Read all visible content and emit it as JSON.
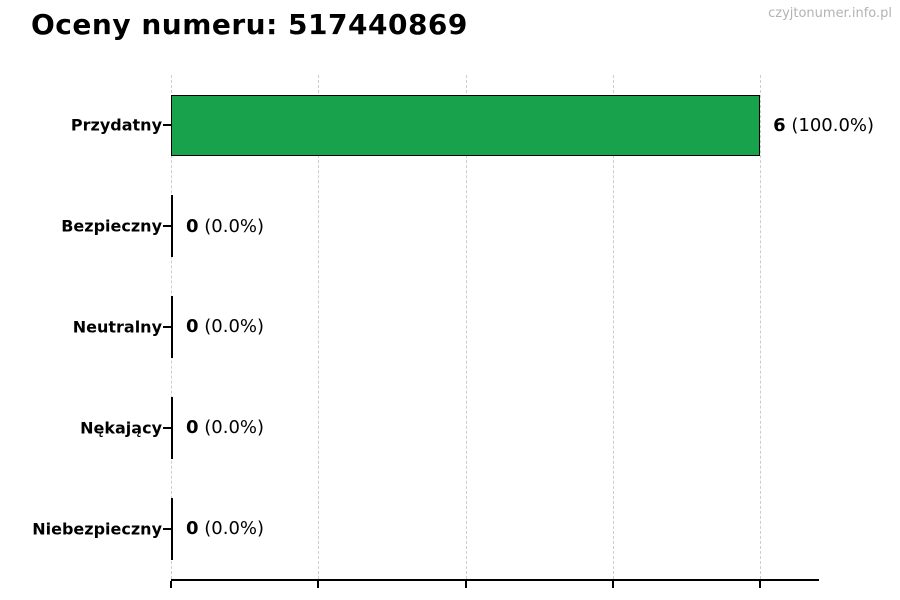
{
  "header": {
    "title": "Oceny numeru: 517440869",
    "watermark": "czyjtonumer.info.pl"
  },
  "chart_data": {
    "type": "bar",
    "orientation": "horizontal",
    "title": "Oceny numeru: 517440869",
    "categories": [
      "Przydatny",
      "Bezpieczny",
      "Neutralny",
      "Nękający",
      "Niebezpieczny"
    ],
    "values": [
      6,
      0,
      0,
      0,
      0
    ],
    "percentages": [
      100.0,
      0.0,
      0.0,
      0.0,
      0.0
    ],
    "rows": [
      {
        "label": "Przydatny",
        "count": "6",
        "pct": "(100.0%)"
      },
      {
        "label": "Bezpieczny",
        "count": "0",
        "pct": "(0.0%)"
      },
      {
        "label": "Neutralny",
        "count": "0",
        "pct": "(0.0%)"
      },
      {
        "label": "Nękający",
        "count": "0",
        "pct": "(0.0%)"
      },
      {
        "label": "Niebezpieczny",
        "count": "0",
        "pct": "(0.0%)"
      }
    ],
    "xlabel": "",
    "ylabel": "",
    "xlim": [
      0,
      6.6
    ],
    "x_ticks": [
      0,
      1.5,
      3,
      4.5,
      6
    ],
    "x_tick_labels": [
      "",
      "",
      "",
      "",
      ""
    ],
    "grid": true,
    "legend_position": "none",
    "bar_color": "#18a24c",
    "bar_border_color": "#000000",
    "grid_color": "#cdcdcd",
    "axis_color": "#000000",
    "watermark_color": "#b3b3b3"
  }
}
